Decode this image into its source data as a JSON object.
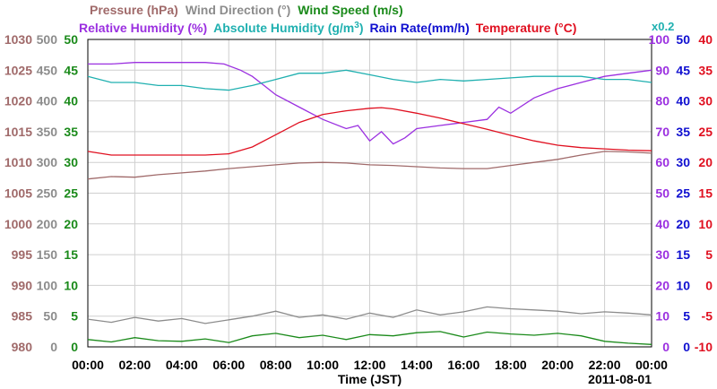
{
  "chart_data": {
    "type": "line",
    "date_label": "2011-08-01",
    "xlabel": "Time (JST)",
    "x_ticks": [
      "00:00",
      "02:00",
      "04:00",
      "06:00",
      "08:00",
      "10:00",
      "12:00",
      "14:00",
      "16:00",
      "18:00",
      "20:00",
      "22:00",
      "00:00"
    ],
    "x_hours": [
      0,
      24
    ],
    "grid": true,
    "legend": {
      "row1": [
        {
          "key": "pressure",
          "label": "Pressure (hPa)",
          "color": "#a06a6a"
        },
        {
          "key": "wind_dir",
          "label": "Wind Direction (°)",
          "color": "#8c8c8c"
        },
        {
          "key": "wind_speed",
          "label": "Wind Speed (m/s)",
          "color": "#1a8a1a"
        }
      ],
      "row2": [
        {
          "key": "rh",
          "label": "Relative Humidity (%)",
          "color": "#9b30e0"
        },
        {
          "key": "ah",
          "label": "Absolute Humidity (g/m",
          "sup": "3",
          "close": ")",
          "color": "#20b0b0"
        },
        {
          "key": "rain",
          "label": "Rain Rate(mm/h)",
          "color": "#1010d0"
        },
        {
          "key": "temp",
          "label": "Temperature (°C)",
          "color": "#e01020"
        }
      ],
      "scale_note": "x0.2",
      "scale_note_color": "#20b0b0"
    },
    "axes": {
      "pressure": {
        "ticks": [
          "1030",
          "1025",
          "1020",
          "1015",
          "1010",
          "1005",
          "1000",
          "995",
          "990",
          "985",
          "980"
        ],
        "range": [
          980,
          1030
        ],
        "color": "#a06a6a"
      },
      "wind_direction": {
        "ticks": [
          "500",
          "450",
          "400",
          "350",
          "300",
          "250",
          "200",
          "150",
          "100",
          "50",
          "0"
        ],
        "range": [
          0,
          500
        ],
        "color": "#8c8c8c"
      },
      "wind_speed": {
        "ticks": [
          "50",
          "45",
          "40",
          "35",
          "30",
          "25",
          "20",
          "15",
          "10",
          "5",
          "0"
        ],
        "range": [
          0,
          50
        ],
        "color": "#1a8a1a"
      },
      "humidity": {
        "ticks": [
          "100",
          "90",
          "80",
          "70",
          "60",
          "50",
          "40",
          "30",
          "20",
          "10",
          "0"
        ],
        "range": [
          0,
          100
        ],
        "color": "#9b30e0"
      },
      "rain_rate": {
        "ticks": [
          "50",
          "45",
          "40",
          "35",
          "30",
          "25",
          "20",
          "15",
          "10",
          "5",
          "0"
        ],
        "range": [
          0,
          50
        ],
        "color": "#1010d0"
      },
      "temperature": {
        "ticks": [
          "40",
          "35",
          "30",
          "25",
          "20",
          "15",
          "10",
          "5",
          "0",
          "-5",
          "-10"
        ],
        "range": [
          -10,
          40
        ],
        "color": "#e01020"
      }
    },
    "series": [
      {
        "name": "Pressure",
        "axis": "pressure",
        "color": "#a06a6a",
        "hours": [
          0,
          1,
          2,
          3,
          4,
          5,
          6,
          7,
          8,
          9,
          10,
          11,
          12,
          13,
          14,
          15,
          16,
          17,
          18,
          19,
          20,
          21,
          22,
          23,
          24
        ],
        "values": [
          1007.3,
          1007.7,
          1007.6,
          1008.0,
          1008.3,
          1008.6,
          1009.0,
          1009.3,
          1009.6,
          1009.9,
          1010.0,
          1009.9,
          1009.6,
          1009.5,
          1009.3,
          1009.1,
          1009.0,
          1009.0,
          1009.5,
          1010.0,
          1010.5,
          1011.2,
          1011.8,
          1011.7,
          1011.5
        ]
      },
      {
        "name": "Wind Direction",
        "axis": "wind_direction",
        "color": "#8c8c8c",
        "hours": [
          0,
          1,
          2,
          3,
          4,
          5,
          6,
          7,
          8,
          9,
          10,
          11,
          12,
          13,
          14,
          15,
          16,
          17,
          18,
          19,
          20,
          21,
          22,
          23,
          24
        ],
        "values": [
          45,
          40,
          48,
          42,
          46,
          38,
          44,
          50,
          58,
          48,
          52,
          45,
          55,
          48,
          60,
          52,
          57,
          65,
          62,
          60,
          58,
          54,
          57,
          55,
          52
        ]
      },
      {
        "name": "Wind Speed",
        "axis": "wind_speed",
        "color": "#1a8a1a",
        "hours": [
          0,
          1,
          2,
          3,
          4,
          5,
          6,
          7,
          8,
          9,
          10,
          11,
          12,
          13,
          14,
          15,
          16,
          17,
          18,
          19,
          20,
          21,
          22,
          23,
          24
        ],
        "values": [
          1.2,
          0.8,
          1.5,
          1.0,
          0.9,
          1.3,
          0.7,
          1.8,
          2.2,
          1.5,
          1.9,
          1.2,
          2.0,
          1.8,
          2.3,
          2.5,
          1.6,
          2.4,
          2.1,
          1.9,
          2.2,
          1.8,
          0.9,
          0.6,
          0.4
        ]
      },
      {
        "name": "Relative Humidity",
        "axis": "humidity",
        "color": "#9b30e0",
        "hours": [
          0,
          1,
          2,
          3,
          4,
          5,
          5.8,
          6.5,
          7,
          7.5,
          8,
          9,
          10,
          11,
          11.5,
          12,
          12.5,
          13,
          13.5,
          14,
          15,
          16,
          17,
          17.5,
          18,
          19,
          20,
          21,
          22,
          23,
          24
        ],
        "values": [
          92,
          92,
          92.5,
          92.5,
          92.5,
          92.5,
          92,
          90,
          88,
          85,
          82,
          78,
          74,
          71,
          72,
          67,
          70,
          66,
          68,
          71,
          72,
          73,
          74,
          78,
          76,
          81,
          84,
          86,
          88,
          89,
          90
        ]
      },
      {
        "name": "Absolute Humidity",
        "axis": "humidity",
        "color": "#20b0b0",
        "hours": [
          0,
          1,
          2,
          3,
          4,
          5,
          6,
          7,
          8,
          9,
          10,
          11,
          12,
          13,
          14,
          15,
          16,
          17,
          18,
          19,
          20,
          21,
          22,
          23,
          24
        ],
        "values": [
          88,
          86,
          86,
          85,
          85,
          84,
          83.5,
          85,
          87,
          89,
          89,
          90,
          88.5,
          87,
          86,
          87,
          86.5,
          87,
          87.5,
          88,
          88,
          88,
          87,
          87,
          86
        ]
      },
      {
        "name": "Temperature",
        "axis": "temperature",
        "color": "#e01020",
        "hours": [
          0,
          1,
          2,
          3,
          4,
          5,
          6,
          7,
          8,
          9,
          10,
          11,
          12,
          12.5,
          13,
          14,
          15,
          16,
          17,
          18,
          19,
          20,
          21,
          22,
          23,
          24
        ],
        "values": [
          21.8,
          21.2,
          21.2,
          21.2,
          21.2,
          21.2,
          21.4,
          22.5,
          24.5,
          26.5,
          27.8,
          28.4,
          28.8,
          28.9,
          28.7,
          28.0,
          27.2,
          26.3,
          25.4,
          24.4,
          23.5,
          22.8,
          22.4,
          22.2,
          22.0,
          21.9
        ]
      }
    ]
  }
}
